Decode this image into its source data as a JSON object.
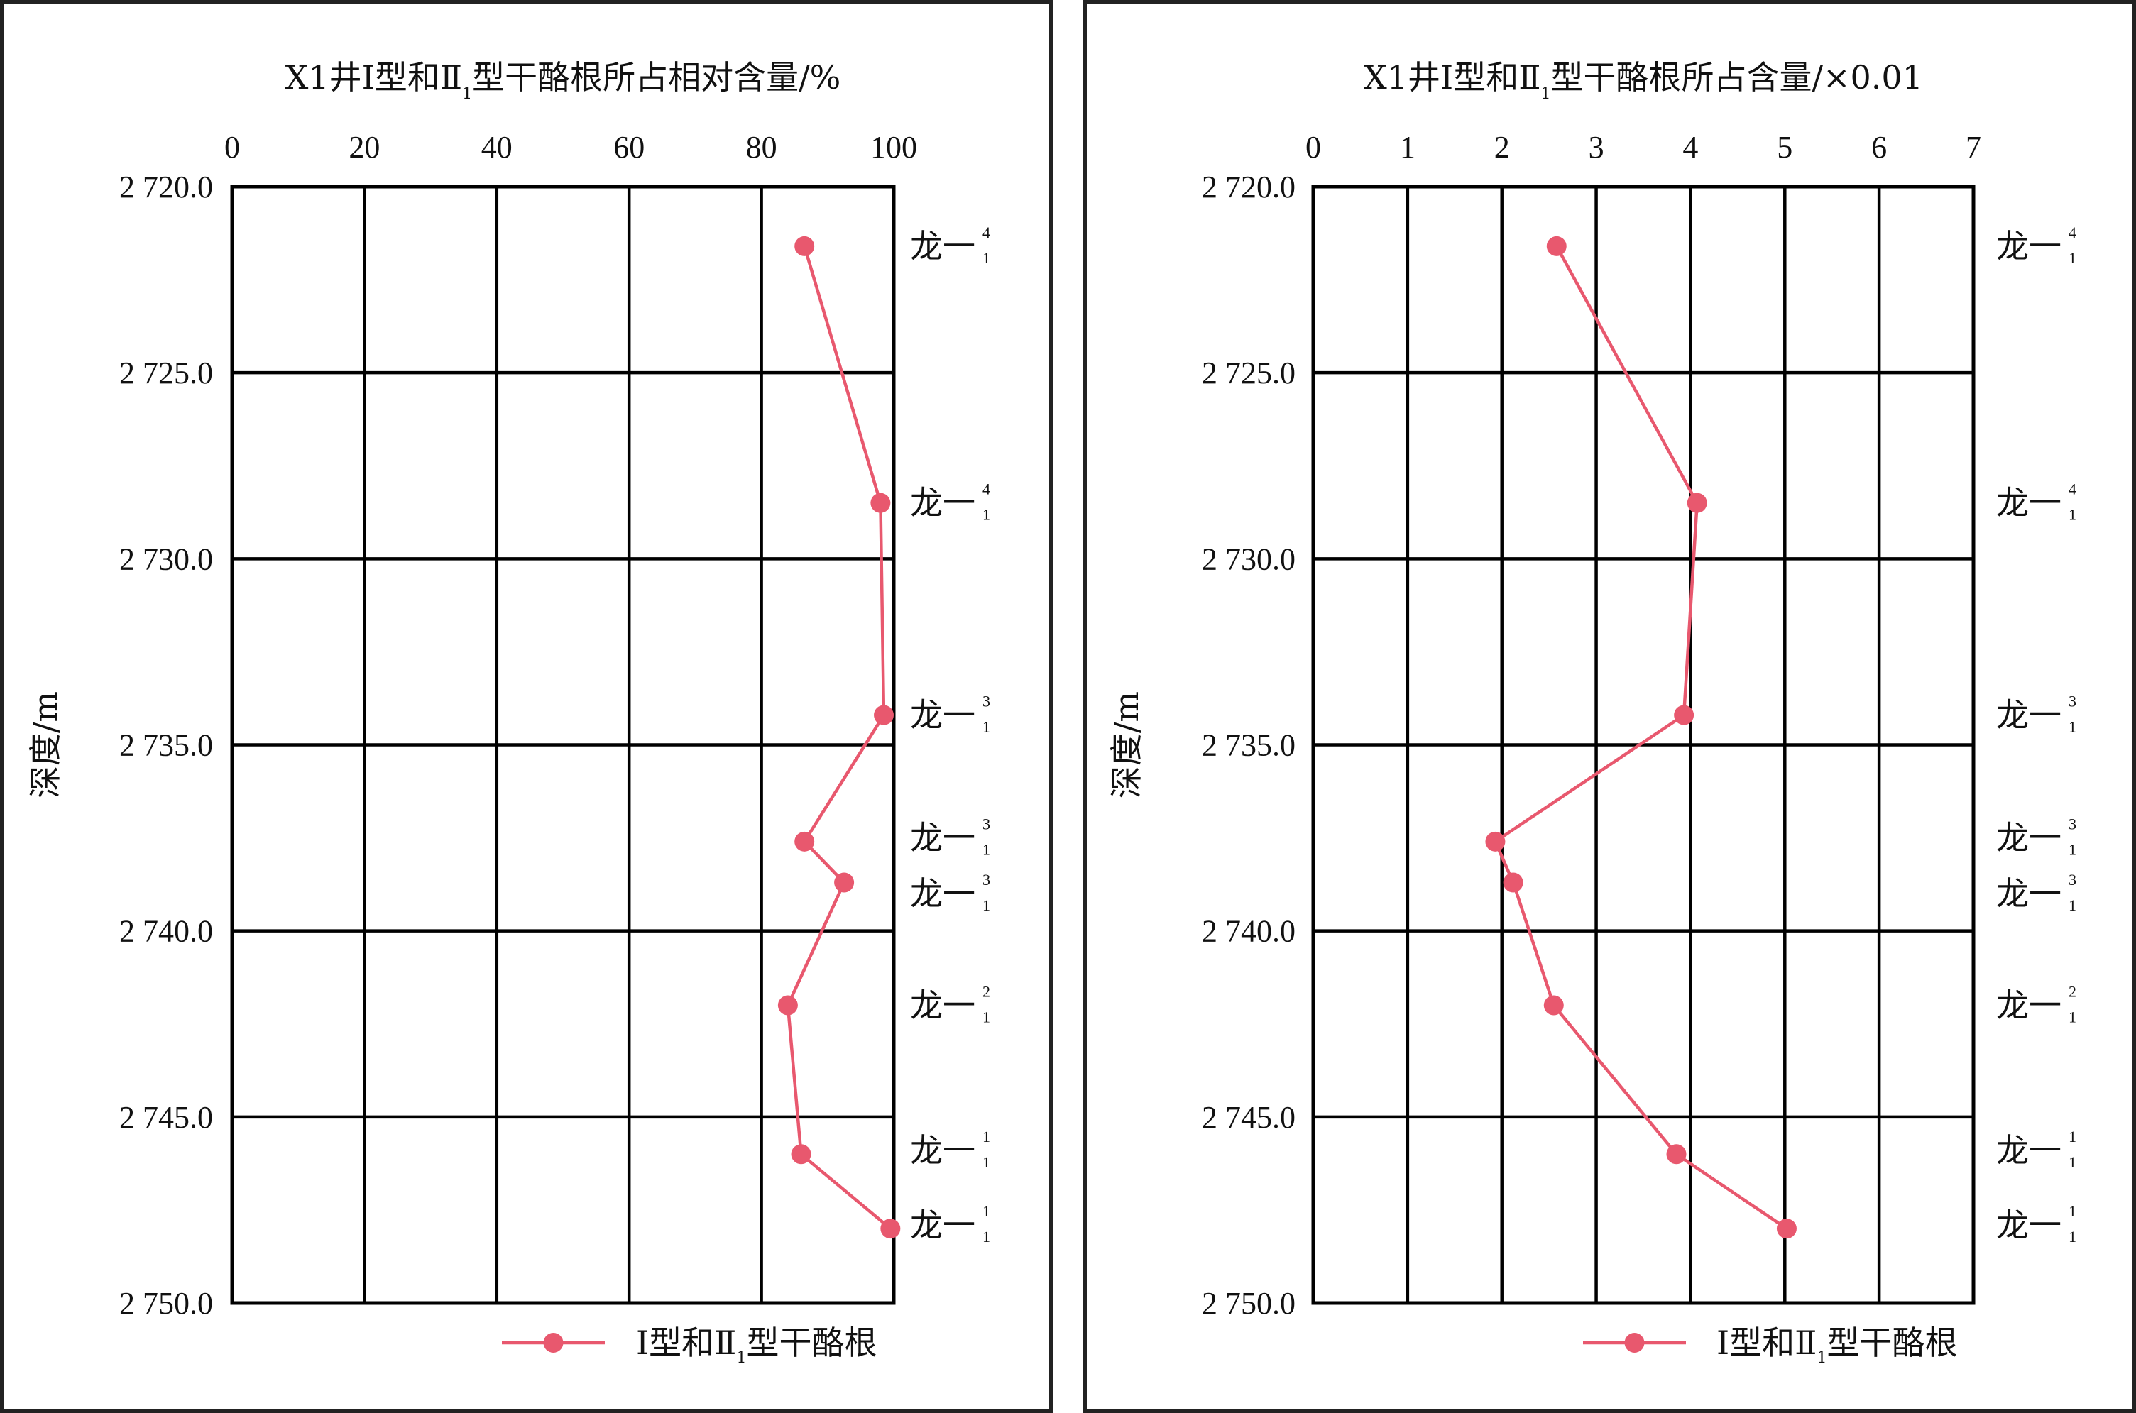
{
  "colors": {
    "series": "#e8586e",
    "grid": "#000000",
    "background": "#ffffff"
  },
  "chart_data": [
    {
      "type": "line",
      "orientation": "vertical-depth",
      "title": "X1井Ⅰ型和Ⅱ1型干酪根所占相对含量/%",
      "title_parts": {
        "main": "X1井Ⅰ型和Ⅱ",
        "sub": "1",
        "rest": "型干酪根所占相对含量/%"
      },
      "xlabel": "",
      "ylabel": "深度/m",
      "xlim": [
        0,
        100
      ],
      "x_ticks": [
        0,
        20,
        40,
        60,
        80,
        100
      ],
      "x_tick_labels": [
        "0",
        "20",
        "40",
        "60",
        "80",
        "100"
      ],
      "ylim": [
        2720.0,
        2750.0
      ],
      "y_ticks": [
        2720,
        2725,
        2730,
        2735,
        2740,
        2745,
        2750
      ],
      "y_tick_labels": [
        "2 720.0",
        "2 725.0",
        "2 730.0",
        "2 735.0",
        "2 740.0",
        "2 745.0",
        "2 750.0"
      ],
      "y_inverted": true,
      "grid": true,
      "legend_placement": "bottom-right",
      "series": [
        {
          "name": "Ⅰ型和Ⅱ1型干酪根",
          "name_parts": {
            "main": "Ⅰ型和Ⅱ",
            "sub": "1",
            "rest": "型干酪根"
          },
          "points": [
            {
              "x": 86.5,
              "depth": 2721.6
            },
            {
              "x": 98.0,
              "depth": 2728.5
            },
            {
              "x": 98.5,
              "depth": 2734.2
            },
            {
              "x": 86.5,
              "depth": 2737.6
            },
            {
              "x": 92.5,
              "depth": 2738.7
            },
            {
              "x": 84.0,
              "depth": 2742.0
            },
            {
              "x": 86.0,
              "depth": 2746.0
            },
            {
              "x": 99.5,
              "depth": 2748.0
            }
          ]
        }
      ],
      "zone_labels": [
        {
          "text": "龙一",
          "sup": "4",
          "sub": "1",
          "depth": 2721.6
        },
        {
          "text": "龙一",
          "sup": "4",
          "sub": "1",
          "depth": 2728.5
        },
        {
          "text": "龙一",
          "sup": "3",
          "sub": "1",
          "depth": 2734.2
        },
        {
          "text": "龙一",
          "sup": "3",
          "sub": "1",
          "depth": 2737.5
        },
        {
          "text": "龙一",
          "sup": "3",
          "sub": "1",
          "depth": 2739.0
        },
        {
          "text": "龙一",
          "sup": "2",
          "sub": "1",
          "depth": 2742.0
        },
        {
          "text": "龙一",
          "sup": "1",
          "sub": "1",
          "depth": 2745.9
        },
        {
          "text": "龙一",
          "sup": "1",
          "sub": "1",
          "depth": 2747.9
        }
      ]
    },
    {
      "type": "line",
      "orientation": "vertical-depth",
      "title": "X1井Ⅰ型和Ⅱ1型干酪根所占含量/×0.01",
      "title_parts": {
        "main": "X1井Ⅰ型和Ⅱ",
        "sub": "1",
        "rest": "型干酪根所占含量/×0.01"
      },
      "xlabel": "",
      "ylabel": "深度/m",
      "xlim": [
        0,
        7
      ],
      "x_ticks": [
        0,
        1,
        2,
        3,
        4,
        5,
        6,
        7
      ],
      "x_tick_labels": [
        "0",
        "1",
        "2",
        "3",
        "4",
        "5",
        "6",
        "7"
      ],
      "ylim": [
        2720.0,
        2750.0
      ],
      "y_ticks": [
        2720,
        2725,
        2730,
        2735,
        2740,
        2745,
        2750
      ],
      "y_tick_labels": [
        "2 720.0",
        "2 725.0",
        "2 730.0",
        "2 735.0",
        "2 740.0",
        "2 745.0",
        "2 750.0"
      ],
      "y_inverted": true,
      "grid": true,
      "legend_placement": "bottom-right",
      "series": [
        {
          "name": "Ⅰ型和Ⅱ1型干酪根",
          "name_parts": {
            "main": "Ⅰ型和Ⅱ",
            "sub": "1",
            "rest": "型干酪根"
          },
          "points": [
            {
              "x": 2.58,
              "depth": 2721.6
            },
            {
              "x": 4.07,
              "depth": 2728.5
            },
            {
              "x": 3.93,
              "depth": 2734.2
            },
            {
              "x": 1.93,
              "depth": 2737.6
            },
            {
              "x": 2.12,
              "depth": 2738.7
            },
            {
              "x": 2.55,
              "depth": 2742.0
            },
            {
              "x": 3.85,
              "depth": 2746.0
            },
            {
              "x": 5.02,
              "depth": 2748.0
            }
          ]
        }
      ],
      "zone_labels": [
        {
          "text": "龙一",
          "sup": "4",
          "sub": "1",
          "depth": 2721.6
        },
        {
          "text": "龙一",
          "sup": "4",
          "sub": "1",
          "depth": 2728.5
        },
        {
          "text": "龙一",
          "sup": "3",
          "sub": "1",
          "depth": 2734.2
        },
        {
          "text": "龙一",
          "sup": "3",
          "sub": "1",
          "depth": 2737.5
        },
        {
          "text": "龙一",
          "sup": "3",
          "sub": "1",
          "depth": 2739.0
        },
        {
          "text": "龙一",
          "sup": "2",
          "sub": "1",
          "depth": 2742.0
        },
        {
          "text": "龙一",
          "sup": "1",
          "sub": "1",
          "depth": 2745.9
        },
        {
          "text": "龙一",
          "sup": "1",
          "sub": "1",
          "depth": 2747.9
        }
      ]
    }
  ]
}
